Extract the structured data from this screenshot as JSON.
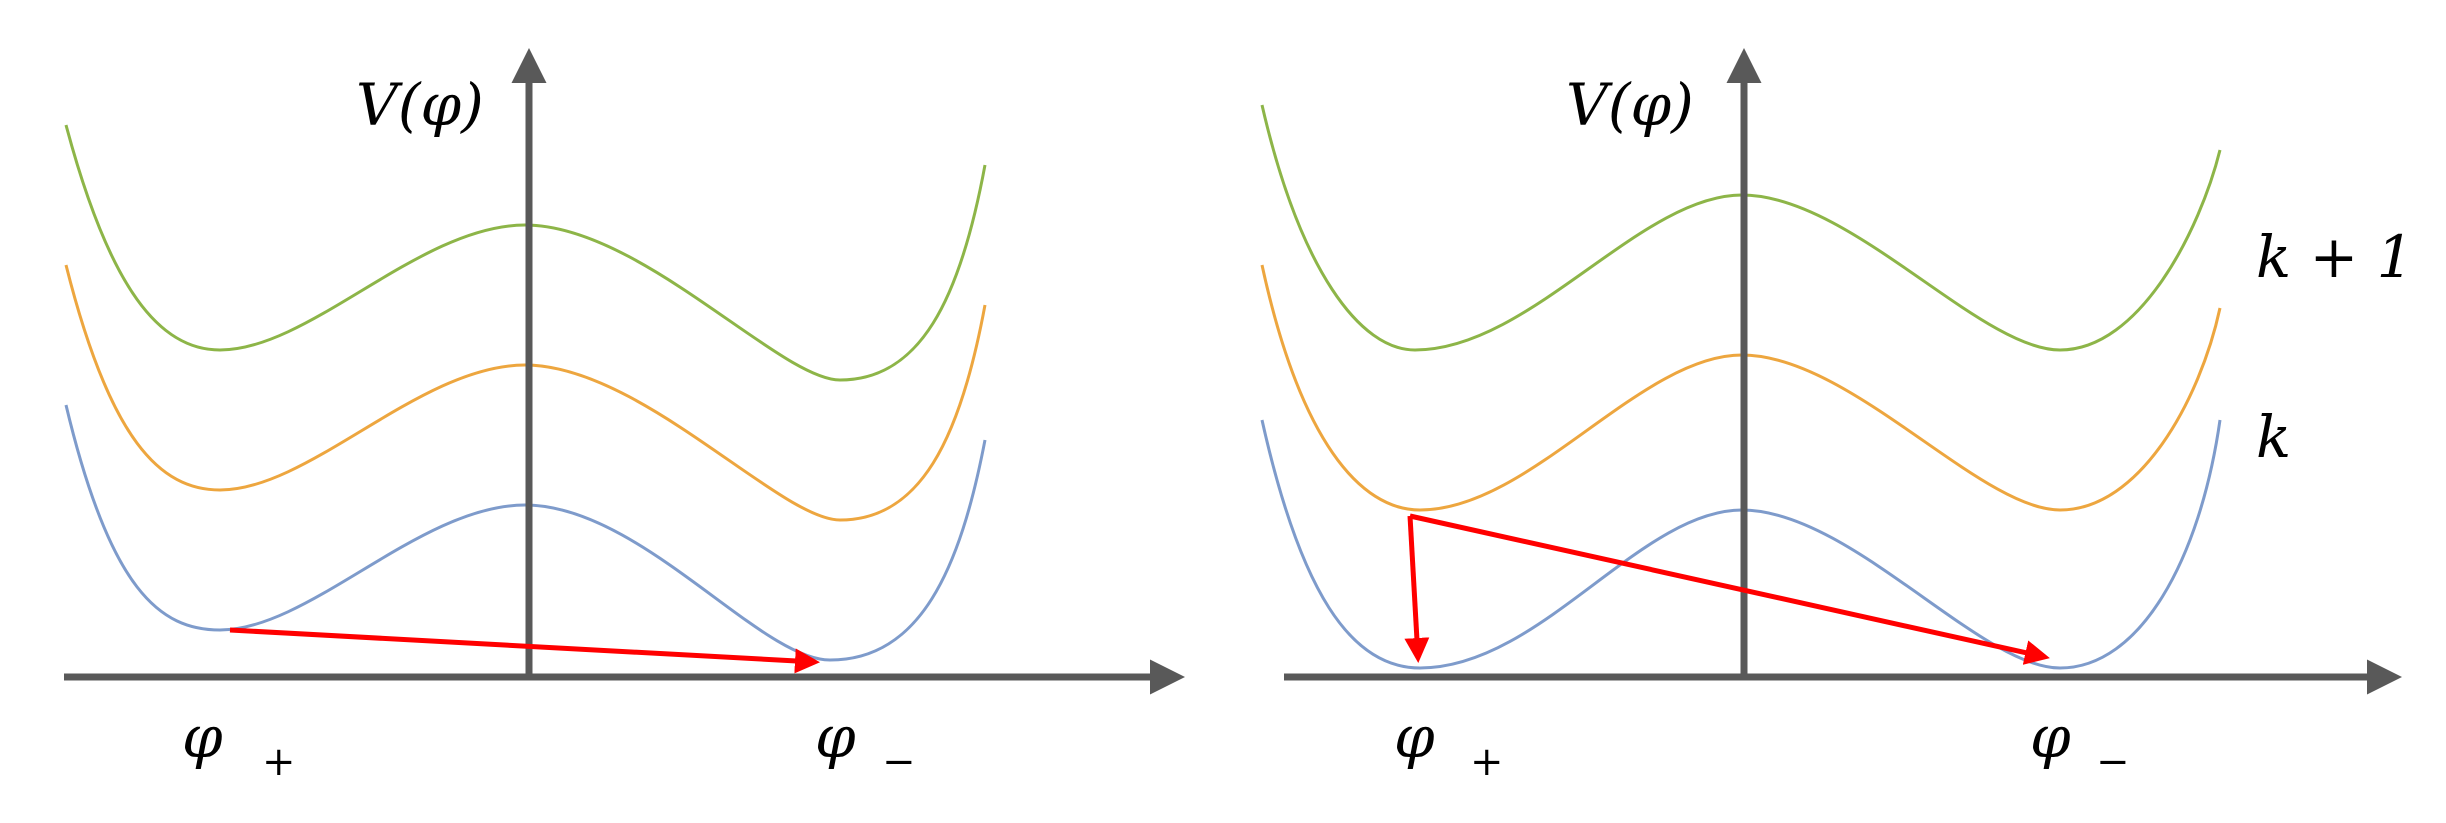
{
  "colors": {
    "axis": "#595959",
    "level_top": "#8DB548",
    "level_mid": "#EDA63F",
    "level_bottom": "#7E9BCB",
    "arrow": "#FF0000",
    "text": "#000000"
  },
  "panels": [
    {
      "id": "left",
      "y_axis_label": "V(φ)",
      "x_labels": {
        "phi_plus": "φ",
        "phi_plus_sub": "+",
        "phi_minus": "φ",
        "phi_minus_sub": "−"
      },
      "arrows": "single diagonal transition from φ+ to φ− on lowest level"
    },
    {
      "id": "right",
      "y_axis_label": "V(φ)",
      "x_labels": {
        "phi_plus": "φ",
        "phi_plus_sub": "+",
        "phi_minus": "φ",
        "phi_minus_sub": "−"
      },
      "level_labels": {
        "upper": "k + 1",
        "lower": "k"
      },
      "arrows": "vertical drop at φ+ from middle level to lowest level, and diagonal from middle-level φ+ to lowest-level φ−"
    }
  ]
}
